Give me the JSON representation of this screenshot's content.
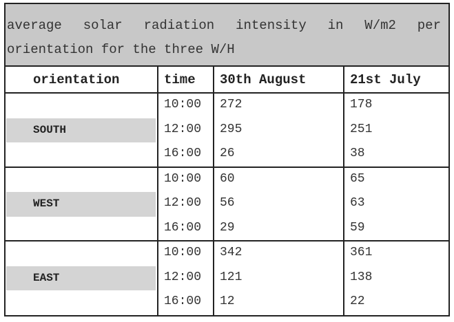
{
  "title": "average solar radiation intensity in W/m2 per orientation for the three W/H",
  "table": {
    "headers": [
      "orientation",
      "time",
      "30th August",
      "21st July"
    ],
    "groups": [
      {
        "orientation": "SOUTH",
        "rows": [
          [
            "10:00",
            272,
            178
          ],
          [
            "12:00",
            295,
            251
          ],
          [
            "16:00",
            26,
            38
          ]
        ]
      },
      {
        "orientation": "WEST",
        "rows": [
          [
            "10:00",
            60,
            65
          ],
          [
            "12:00",
            56,
            63
          ],
          [
            "16:00",
            29,
            59
          ]
        ]
      },
      {
        "orientation": "EAST",
        "rows": [
          [
            "10:00",
            342,
            361
          ],
          [
            "12:00",
            121,
            138
          ],
          [
            "16:00",
            12,
            22
          ]
        ]
      }
    ]
  }
}
